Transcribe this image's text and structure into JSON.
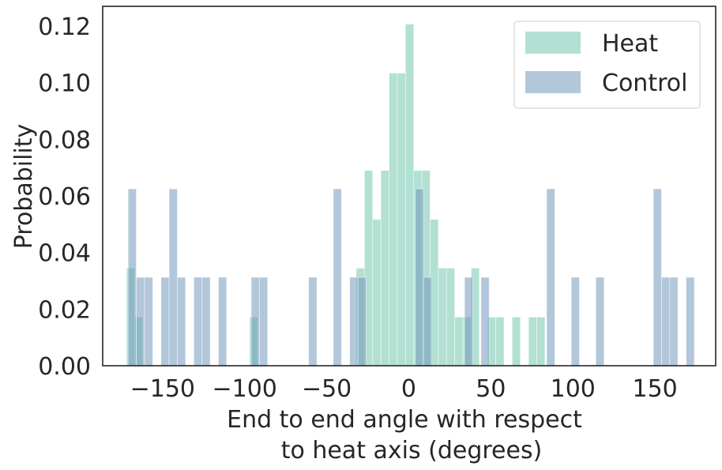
{
  "chart_data": {
    "type": "bar",
    "histogram": true,
    "xlabel_lines": [
      "End to end angle with respect",
      "to heat axis (degrees)"
    ],
    "ylabel": "Probability",
    "xlim": [
      -186.5,
      187
    ],
    "ylim": [
      0,
      0.127
    ],
    "xticks": [
      -150,
      -100,
      -50,
      0,
      50,
      100,
      150
    ],
    "yticks": [
      0.0,
      0.02,
      0.04,
      0.06,
      0.08,
      0.1,
      0.12
    ],
    "grid": false,
    "legend_position": "top-right",
    "bin_width": 5,
    "series": [
      {
        "name": "Heat",
        "color": "#66c2a5",
        "opacity": 0.5,
        "bins": [
          {
            "x0": -172,
            "value": 0.0345
          },
          {
            "x0": -167,
            "value": 0.0172
          },
          {
            "x0": -97,
            "value": 0.0172
          },
          {
            "x0": -32,
            "value": 0.0345
          },
          {
            "x0": -27,
            "value": 0.069
          },
          {
            "x0": -22,
            "value": 0.0517
          },
          {
            "x0": -17,
            "value": 0.069
          },
          {
            "x0": -12,
            "value": 0.1034
          },
          {
            "x0": -7,
            "value": 0.1034
          },
          {
            "x0": -2,
            "value": 0.1207
          },
          {
            "x0": 3,
            "value": 0.069
          },
          {
            "x0": 8,
            "value": 0.069
          },
          {
            "x0": 13,
            "value": 0.0517
          },
          {
            "x0": 18,
            "value": 0.0345
          },
          {
            "x0": 23,
            "value": 0.0345
          },
          {
            "x0": 28,
            "value": 0.0172
          },
          {
            "x0": 33,
            "value": 0.0172
          },
          {
            "x0": 38,
            "value": 0.0345
          },
          {
            "x0": 48,
            "value": 0.0172
          },
          {
            "x0": 53,
            "value": 0.0172
          },
          {
            "x0": 63,
            "value": 0.0172
          },
          {
            "x0": 73,
            "value": 0.0172
          },
          {
            "x0": 78,
            "value": 0.0172
          }
        ]
      },
      {
        "name": "Control",
        "color": "#6890b8",
        "opacity": 0.5,
        "bins": [
          {
            "x0": -171,
            "value": 0.0625
          },
          {
            "x0": -166,
            "value": 0.03125
          },
          {
            "x0": -161,
            "value": 0.03125
          },
          {
            "x0": -151,
            "value": 0.03125
          },
          {
            "x0": -146,
            "value": 0.0625
          },
          {
            "x0": -141,
            "value": 0.03125
          },
          {
            "x0": -131,
            "value": 0.03125
          },
          {
            "x0": -126,
            "value": 0.03125
          },
          {
            "x0": -116,
            "value": 0.03125
          },
          {
            "x0": -96,
            "value": 0.03125
          },
          {
            "x0": -91,
            "value": 0.03125
          },
          {
            "x0": -61,
            "value": 0.03125
          },
          {
            "x0": -46,
            "value": 0.0625
          },
          {
            "x0": -36,
            "value": 0.03125
          },
          {
            "x0": -31,
            "value": 0.03125
          },
          {
            "x0": 4,
            "value": 0.0625
          },
          {
            "x0": 9,
            "value": 0.03125
          },
          {
            "x0": 34,
            "value": 0.03125
          },
          {
            "x0": 44,
            "value": 0.03125
          },
          {
            "x0": 84,
            "value": 0.0625
          },
          {
            "x0": 99,
            "value": 0.03125
          },
          {
            "x0": 114,
            "value": 0.03125
          },
          {
            "x0": 149,
            "value": 0.0625
          },
          {
            "x0": 154,
            "value": 0.03125
          },
          {
            "x0": 159,
            "value": 0.03125
          },
          {
            "x0": 169,
            "value": 0.03125
          }
        ]
      }
    ]
  }
}
